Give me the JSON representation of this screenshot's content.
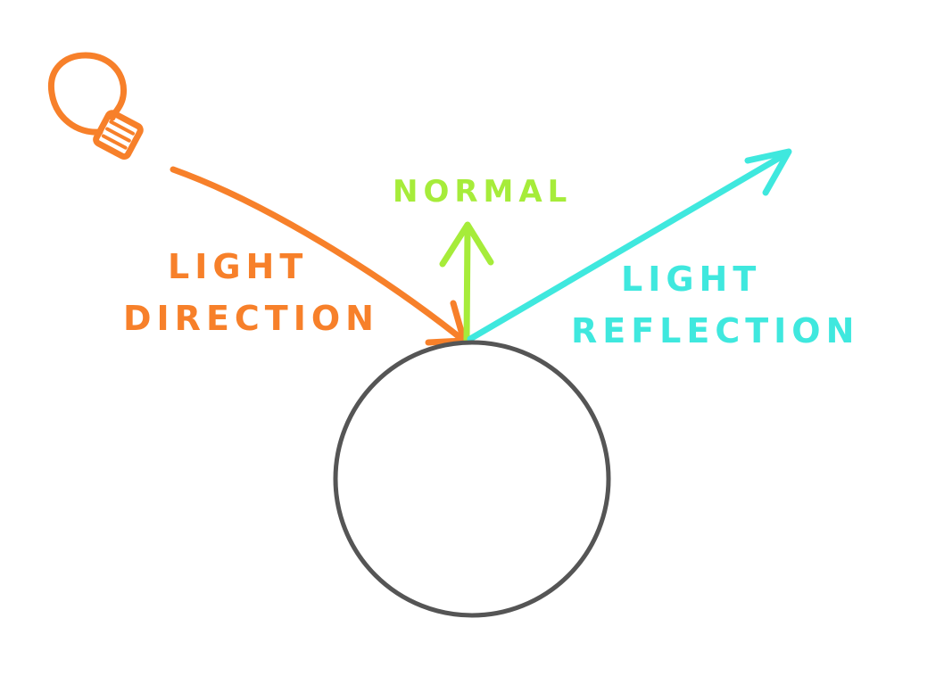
{
  "diagram": {
    "labels": {
      "light_direction_line1": "LIGHT",
      "light_direction_line2": "DIRECTION",
      "normal": "NORMAL",
      "light_reflection_line1": "LIGHT",
      "light_reflection_line2": "REFLECTION"
    },
    "colors": {
      "light_direction": "#f7802a",
      "normal": "#a6ec3a",
      "light_reflection": "#3fe8de",
      "surface": "#555555",
      "background": "#ffffff"
    },
    "icons": {
      "light_source": "light-bulb-icon"
    }
  }
}
